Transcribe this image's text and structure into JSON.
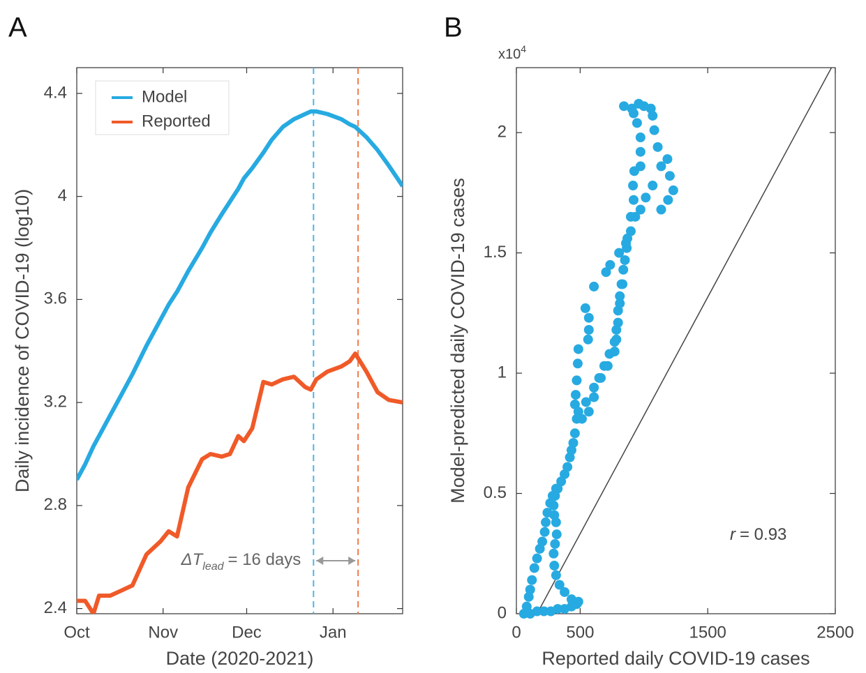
{
  "chart_data": [
    {
      "type": "line",
      "panel_label": "A",
      "xlabel": "Date (2020-2021)",
      "ylabel": "Daily incidence of COVID-19 (log10)",
      "x": [
        0,
        3,
        6,
        8,
        12,
        16,
        20,
        25,
        30,
        33,
        36,
        40,
        45,
        48,
        52,
        55,
        58,
        60,
        63,
        67,
        70,
        74,
        78,
        82,
        84,
        86,
        90,
        95,
        98,
        100,
        104,
        108,
        112,
        117
      ],
      "xlim": [
        0,
        117
      ],
      "xticks": [
        {
          "value": 0,
          "label": "Oct"
        },
        {
          "value": 31,
          "label": "Nov"
        },
        {
          "value": 61,
          "label": "Dec"
        },
        {
          "value": 92,
          "label": "Jan"
        }
      ],
      "ylim": [
        2.38,
        4.5
      ],
      "yticks": [
        2.4,
        2.8,
        3.2,
        3.6,
        4,
        4.4
      ],
      "legend": "upper left",
      "series": [
        {
          "name": "Model",
          "color": "#27aae1",
          "values": [
            2.9,
            2.96,
            3.03,
            3.07,
            3.15,
            3.23,
            3.31,
            3.42,
            3.52,
            3.58,
            3.63,
            3.71,
            3.8,
            3.86,
            3.93,
            3.98,
            4.03,
            4.07,
            4.11,
            4.17,
            4.22,
            4.27,
            4.3,
            4.32,
            4.33,
            4.33,
            4.32,
            4.3,
            4.28,
            4.27,
            4.23,
            4.18,
            4.12,
            4.04
          ]
        },
        {
          "name": "Reported",
          "color": "#f05a28",
          "values": [
            2.43,
            2.43,
            2.38,
            2.45,
            2.45,
            2.47,
            2.49,
            2.61,
            2.66,
            2.7,
            2.68,
            2.87,
            2.98,
            3.0,
            2.99,
            3.0,
            3.07,
            3.05,
            3.1,
            3.28,
            3.27,
            3.29,
            3.3,
            3.26,
            3.25,
            3.29,
            3.32,
            3.34,
            3.36,
            3.39,
            3.32,
            3.24,
            3.21,
            3.2
          ]
        }
      ],
      "vlines": [
        {
          "x": 85,
          "color": "#4ab6e8"
        },
        {
          "x": 101,
          "color": "#f07a4a"
        }
      ],
      "annotation": {
        "text": "ΔT",
        "subscript": "lead",
        "suffix": "= 16 days"
      }
    },
    {
      "type": "scatter",
      "panel_label": "B",
      "xlabel": "Reported daily COVID-19 cases",
      "ylabel": "Model-predicted daily COVID-19 cases",
      "y_multiplier": {
        "base": "x10",
        "exponent": "4"
      },
      "xlim": [
        0,
        2500
      ],
      "xticks": [
        0,
        500,
        1500,
        2500
      ],
      "ylim": [
        0,
        2.27
      ],
      "yticks": [
        0,
        0.5,
        1,
        1.5,
        2
      ],
      "color": "#27aae1",
      "x": [
        59,
        108,
        162,
        216,
        270,
        324,
        378,
        432,
        473,
        486,
        432,
        378,
        338,
        311,
        297,
        292,
        303,
        316,
        311,
        297,
        292,
        303,
        324,
        351,
        378,
        400,
        419,
        432,
        446,
        459,
        473,
        486,
        514,
        546,
        608,
        649,
        689,
        730,
        770,
        784,
        797,
        811,
        824,
        838,
        865,
        897,
        932,
        973,
        1014,
        1068,
        1135,
        1189,
        1230,
        1203,
        1184,
        1135,
        1108,
        1081,
        1068,
        1054,
        1000,
        959,
        905,
        843,
        919,
        946,
        973,
        973,
        973,
        924,
        914,
        919,
        897,
        870,
        851,
        832,
        811,
        797,
        784,
        770,
        716,
        662,
        608,
        568,
        486,
        481,
        473,
        465,
        459,
        541,
        568,
        568,
        562,
        608,
        703,
        735,
        805,
        859,
        81,
        97,
        108,
        122,
        141,
        162,
        184,
        203,
        222,
        230,
        243,
        265,
        284,
        311
      ],
      "y": [
        0,
        0,
        0.01,
        0.01,
        0.01,
        0.02,
        0.02,
        0.03,
        0.04,
        0.05,
        0.06,
        0.09,
        0.12,
        0.16,
        0.2,
        0.25,
        0.29,
        0.33,
        0.38,
        0.41,
        0.45,
        0.49,
        0.52,
        0.55,
        0.58,
        0.61,
        0.65,
        0.68,
        0.71,
        0.75,
        0.81,
        0.84,
        0.81,
        0.88,
        0.94,
        0.98,
        1.03,
        1.08,
        1.13,
        1.18,
        1.26,
        1.32,
        1.37,
        1.43,
        1.52,
        1.59,
        1.65,
        1.68,
        1.73,
        1.78,
        1.68,
        1.72,
        1.76,
        1.82,
        1.89,
        1.86,
        1.94,
        2.01,
        2.07,
        2.1,
        2.11,
        2.12,
        2.1,
        2.11,
        2.08,
        2.04,
        1.98,
        1.92,
        1.86,
        1.84,
        1.78,
        1.72,
        1.65,
        1.56,
        1.47,
        1.37,
        1.29,
        1.21,
        1.14,
        1.09,
        1.03,
        0.98,
        0.9,
        0.84,
        1.1,
        1.04,
        0.97,
        0.91,
        0.87,
        1.27,
        1.23,
        1.18,
        1.14,
        1.36,
        1.42,
        1.45,
        1.5,
        1.54,
        0.03,
        0.07,
        0.1,
        0.14,
        0.19,
        0.23,
        0.27,
        0.3,
        0.34,
        0.38,
        0.42,
        0.46,
        0.49,
        0.52
      ],
      "reference_line": {
        "x": [
          162,
          2470
        ],
        "y": [
          0,
          2.27
        ]
      },
      "annotation": {
        "symbol": "r",
        "text": "= 0.93"
      }
    }
  ]
}
